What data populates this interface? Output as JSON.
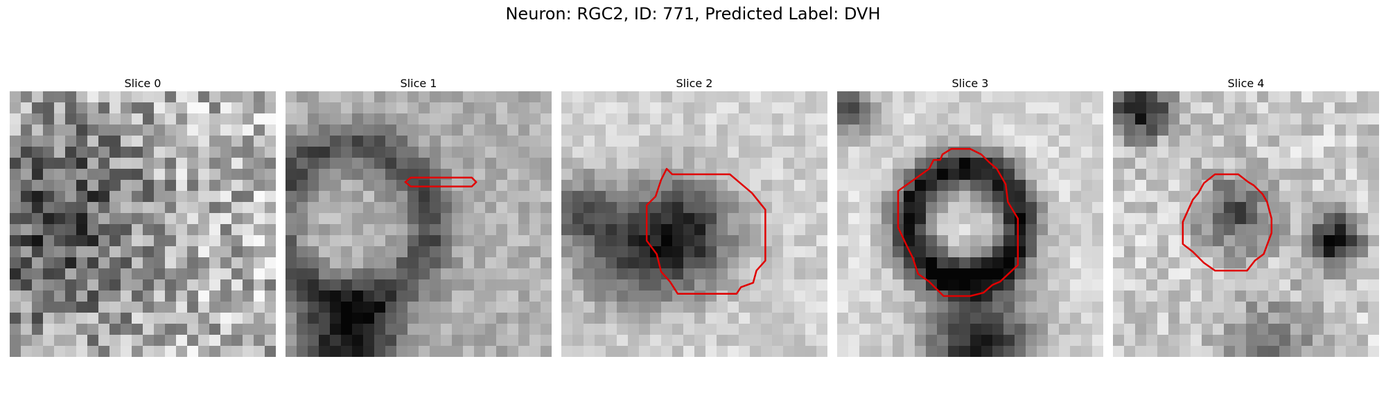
{
  "figure": {
    "title": "Neuron: RGC2, ID: 771, Predicted Label: DVH"
  },
  "colors": {
    "outline": "#e00000"
  },
  "panels": [
    {
      "title": "Slice 0",
      "contour": false
    },
    {
      "title": "Slice 1",
      "contour": true
    },
    {
      "title": "Slice 2",
      "contour": true
    },
    {
      "title": "Slice 3",
      "contour": true
    },
    {
      "title": "Slice 4",
      "contour": true
    }
  ]
}
